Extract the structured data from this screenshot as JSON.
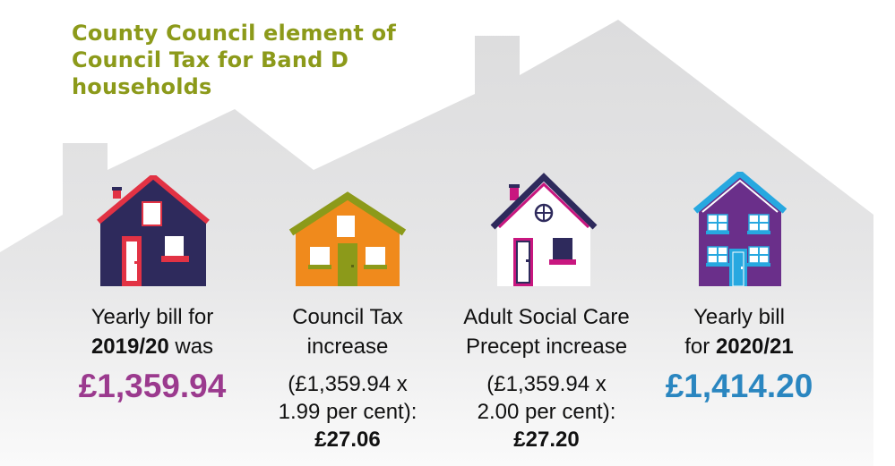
{
  "title": "County Council element of Council Tax for Band D households",
  "items": [
    {
      "line1": "Yearly bill for",
      "line2_bold": "2019/20",
      "line2_rest": " was",
      "amount": "£1,359.94",
      "amount_color": "#9b3a8e"
    },
    {
      "line1": "Council Tax",
      "line2": "increase",
      "calc1": "(£1,359.94 x",
      "calc2": "1.99 per cent):",
      "result": "£27.06"
    },
    {
      "line1": "Adult Social Care",
      "line2": "Precept increase",
      "calc1": "(£1,359.94 x",
      "calc2": "2.00 per cent):",
      "result": "£27.20"
    },
    {
      "line1": "Yearly bill",
      "line2_pre": "for ",
      "line2_bold": "2020/21",
      "amount": "£1,414.20",
      "amount_color": "#2a86c0"
    }
  ],
  "colors": {
    "title": "#8c9a1a",
    "background_roofs": "#dcdcdd",
    "house1_body": "#2e2a5c",
    "house1_roof": "#e23244",
    "house2_body": "#f08a1c",
    "house2_roof": "#8c9a1a",
    "house3_body": "#ffffff",
    "house3_roof": "#2e2a5c",
    "house3_accent": "#c8177f",
    "house4_body": "#6a2f8a",
    "house4_roof": "#27a8e0"
  }
}
